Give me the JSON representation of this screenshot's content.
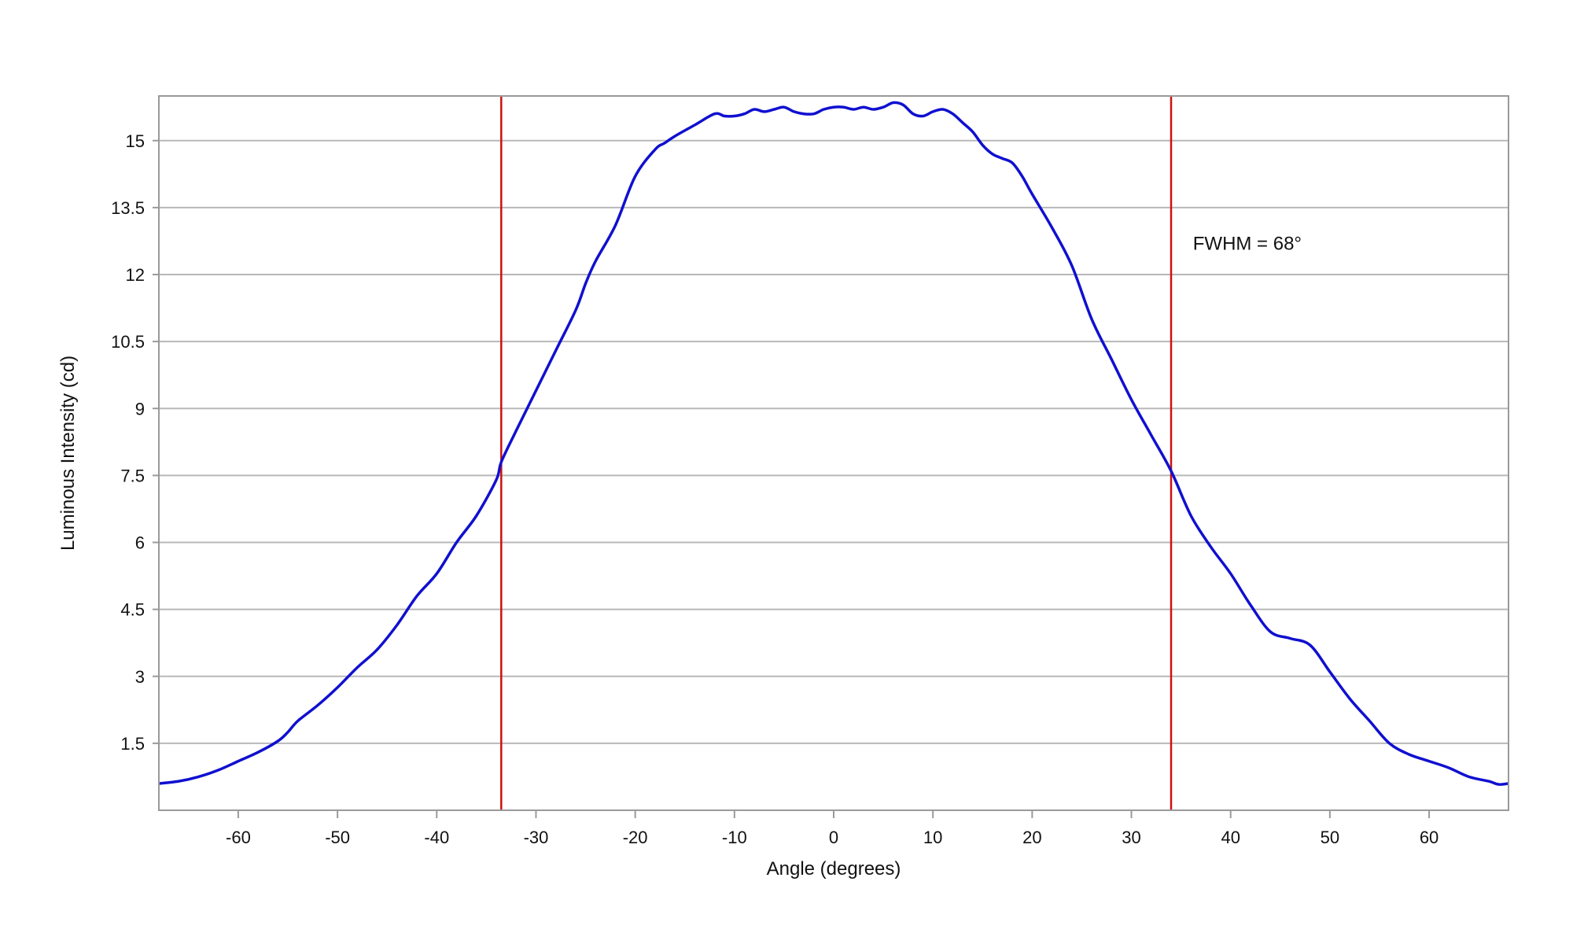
{
  "chart_data": {
    "type": "line",
    "title": "",
    "xlabel": "Angle (degrees)",
    "ylabel": "Luminous Intensity (cd)",
    "xlim": [
      -68,
      68
    ],
    "ylim": [
      0,
      16
    ],
    "x_ticks": [
      -60,
      -50,
      -40,
      -30,
      -20,
      -10,
      0,
      10,
      20,
      30,
      40,
      50,
      60
    ],
    "y_ticks": [
      1.5,
      3,
      4.5,
      6,
      7.5,
      9,
      10.5,
      12,
      13.5,
      15
    ],
    "grid": "horizontal",
    "legend": "none",
    "series": [
      {
        "color": "#1010d0",
        "x": [
          -68,
          -66,
          -64,
          -62,
          -60,
          -58,
          -56,
          -55,
          -54,
          -52,
          -50,
          -48,
          -46,
          -44,
          -42,
          -40,
          -38,
          -36,
          -34,
          -33.5,
          -32,
          -30,
          -28,
          -26,
          -25,
          -24,
          -22,
          -20,
          -18,
          -17,
          -16,
          -14,
          -12,
          -11,
          -10,
          -9,
          -8,
          -7,
          -6,
          -5,
          -4,
          -3,
          -2,
          -1,
          0,
          1,
          2,
          3,
          4,
          5,
          6,
          7,
          8,
          9,
          10,
          11,
          12,
          13,
          14,
          15,
          16,
          17,
          18,
          19,
          20,
          22,
          24,
          26,
          28,
          30,
          32,
          34,
          36,
          38,
          40,
          42,
          44,
          46,
          48,
          50,
          52,
          54,
          56,
          58,
          60,
          62,
          64,
          66,
          67,
          68
        ],
        "values": [
          0.6,
          0.65,
          0.75,
          0.9,
          1.1,
          1.3,
          1.55,
          1.75,
          2.0,
          2.35,
          2.75,
          3.2,
          3.6,
          4.15,
          4.8,
          5.3,
          6.0,
          6.6,
          7.4,
          7.8,
          8.5,
          9.4,
          10.3,
          11.2,
          11.8,
          12.3,
          13.1,
          14.2,
          14.8,
          14.95,
          15.1,
          15.35,
          15.6,
          15.55,
          15.55,
          15.6,
          15.7,
          15.65,
          15.7,
          15.75,
          15.65,
          15.6,
          15.6,
          15.7,
          15.75,
          15.75,
          15.7,
          15.75,
          15.7,
          15.75,
          15.85,
          15.8,
          15.6,
          15.55,
          15.65,
          15.7,
          15.6,
          15.4,
          15.2,
          14.9,
          14.7,
          14.6,
          14.5,
          14.2,
          13.8,
          13.05,
          12.2,
          11.0,
          10.1,
          9.2,
          8.4,
          7.6,
          6.6,
          5.9,
          5.3,
          4.6,
          4.0,
          3.85,
          3.7,
          3.1,
          2.5,
          2.0,
          1.5,
          1.25,
          1.1,
          0.95,
          0.75,
          0.65,
          0.58,
          0.6
        ]
      }
    ],
    "markers": [
      {
        "x": -33.5,
        "color": "#cc1111"
      },
      {
        "x": 34,
        "color": "#cc1111"
      }
    ],
    "annotation": {
      "text": "FWHM = 68°",
      "x": 36.2,
      "y": 12.7
    }
  }
}
